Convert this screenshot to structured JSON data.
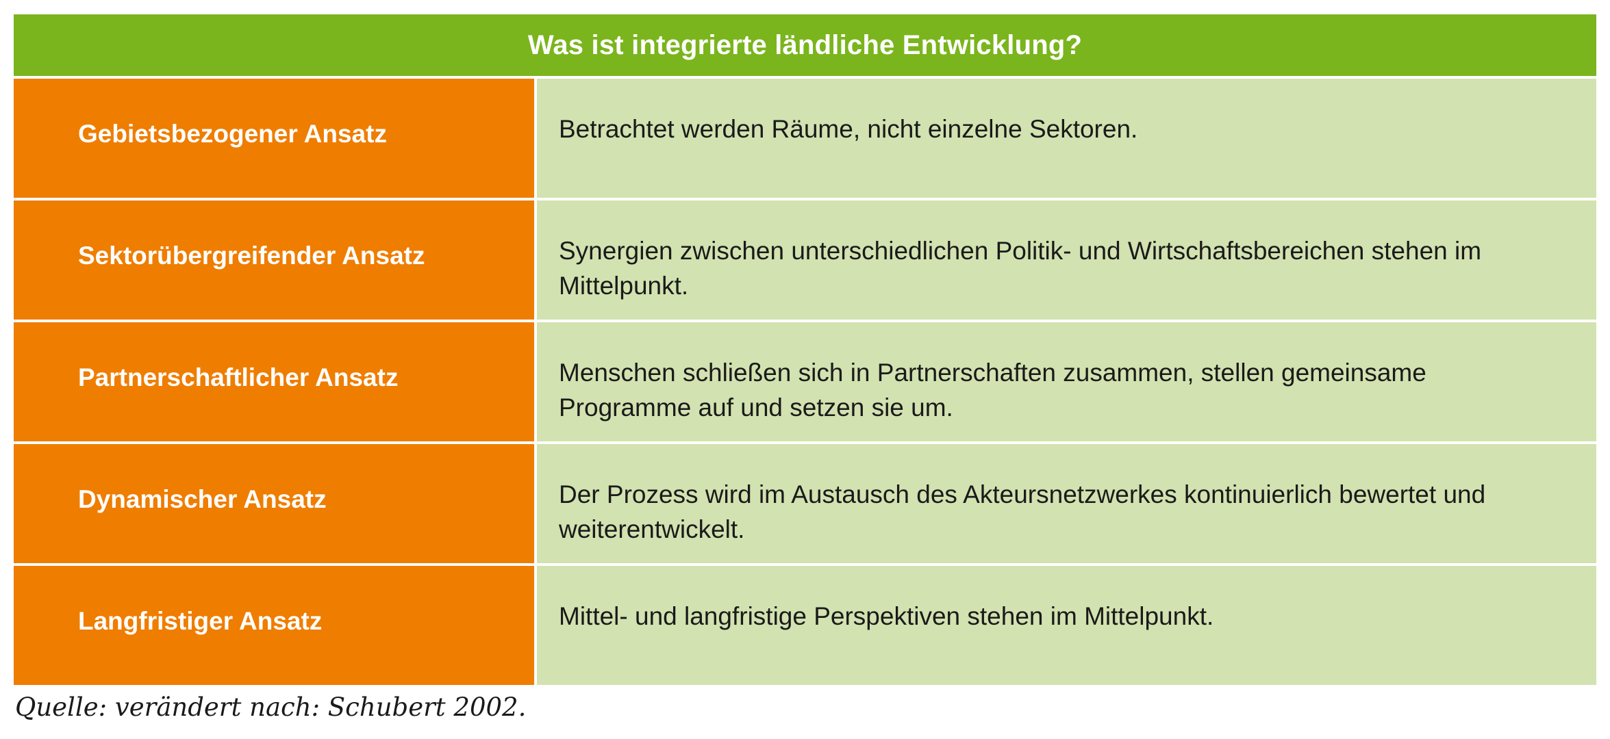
{
  "table": {
    "title": "Was ist integrierte ländliche Entwicklung?",
    "rows": [
      {
        "label": "Gebietsbezogener Ansatz",
        "description": "Betrachtet werden Räume, nicht einzelne Sektoren."
      },
      {
        "label": "Sektorübergreifender Ansatz",
        "description": "Synergien zwischen unterschiedlichen Politik- und Wirtschaftsbereichen stehen im Mittelpunkt."
      },
      {
        "label": "Partnerschaftlicher Ansatz",
        "description": "Menschen schließen sich in Partnerschaften zusammen, stellen gemeinsame Programme auf und setzen sie um."
      },
      {
        "label": "Dynamischer Ansatz",
        "description": "Der Prozess wird im Austausch des Akteursnetzwerkes kontinuierlich bewertet und weiterentwickelt."
      },
      {
        "label": "Langfristiger Ansatz",
        "description": "Mittel- und langfristige Perspektiven stehen im Mittelpunkt."
      }
    ]
  },
  "source": "Quelle: verändert nach: Schubert 2002.",
  "colors": {
    "header_green": "#7ab51d",
    "label_orange": "#ef7d00",
    "desc_light_green": "#d2e2b0"
  }
}
